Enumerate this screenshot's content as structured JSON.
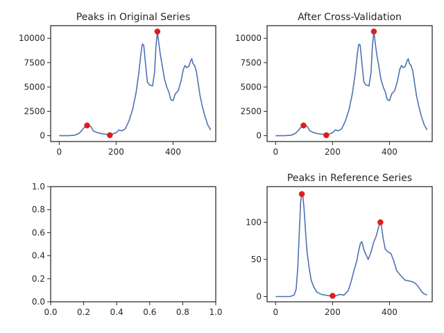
{
  "chart_data": [
    {
      "type": "line",
      "title": "Peaks in Original Series",
      "xlabel": "",
      "ylabel": "",
      "xlim": [
        -30,
        550
      ],
      "ylim": [
        -600,
        11300
      ],
      "xticks": [
        0,
        200,
        400
      ],
      "xtick_labels": [
        "0",
        "200",
        "400"
      ],
      "yticks": [
        0,
        2500,
        5000,
        7500,
        10000
      ],
      "ytick_labels": [
        "0",
        "2500",
        "5000",
        "7500",
        "10000"
      ],
      "grid": false,
      "series": [
        {
          "x": [
            0,
            30,
            55,
            70,
            80,
            90,
            98,
            105,
            112,
            120,
            135,
            150,
            165,
            178,
            190,
            200,
            210,
            220,
            232,
            245,
            258,
            270,
            280,
            287,
            292,
            297,
            303,
            310,
            318,
            328,
            335,
            340,
            345,
            350,
            356,
            362,
            370,
            378,
            385,
            392,
            400,
            408,
            418,
            428,
            436,
            442,
            448,
            455,
            462,
            466,
            470,
            476,
            482,
            488,
            495,
            503,
            512,
            522,
            532
          ],
          "y": [
            0,
            0,
            50,
            250,
            550,
            900,
            1050,
            1050,
            900,
            500,
            300,
            200,
            150,
            50,
            200,
            300,
            600,
            500,
            700,
            1500,
            2700,
            4400,
            6500,
            8400,
            9400,
            9300,
            7500,
            5500,
            5200,
            5100,
            6500,
            9200,
            10700,
            9500,
            8200,
            7200,
            5800,
            5000,
            4500,
            3700,
            3600,
            4300,
            4600,
            5600,
            6800,
            7200,
            7000,
            7100,
            7700,
            7900,
            7400,
            7200,
            6600,
            5400,
            4100,
            3000,
            2000,
            1100,
            600
          ]
        }
      ],
      "peaks": {
        "x": [
          98,
          178,
          345
        ],
        "y": [
          1050,
          50,
          10700
        ]
      }
    },
    {
      "type": "line",
      "title": "After Cross-Validation",
      "xlabel": "",
      "ylabel": "",
      "xlim": [
        -30,
        550
      ],
      "ylim": [
        -600,
        11300
      ],
      "xticks": [
        0,
        200,
        400
      ],
      "xtick_labels": [
        "0",
        "200",
        "400"
      ],
      "yticks": [
        0,
        2500,
        5000,
        7500,
        10000
      ],
      "ytick_labels": [
        "0",
        "2500",
        "5000",
        "7500",
        "10000"
      ],
      "grid": false,
      "series": [
        {
          "x": [
            0,
            30,
            55,
            70,
            80,
            90,
            98,
            105,
            112,
            120,
            135,
            150,
            165,
            178,
            190,
            200,
            210,
            220,
            232,
            245,
            258,
            270,
            280,
            287,
            292,
            297,
            303,
            310,
            318,
            328,
            335,
            340,
            345,
            350,
            356,
            362,
            370,
            378,
            385,
            392,
            400,
            408,
            418,
            428,
            436,
            442,
            448,
            455,
            462,
            466,
            470,
            476,
            482,
            488,
            495,
            503,
            512,
            522,
            532
          ],
          "y": [
            0,
            0,
            50,
            250,
            550,
            900,
            1050,
            1050,
            900,
            500,
            300,
            200,
            150,
            50,
            200,
            300,
            600,
            500,
            700,
            1500,
            2700,
            4400,
            6500,
            8400,
            9400,
            9300,
            7500,
            5500,
            5200,
            5100,
            6500,
            9200,
            10700,
            9500,
            8200,
            7200,
            5800,
            5000,
            4500,
            3700,
            3600,
            4300,
            4600,
            5600,
            6800,
            7200,
            7000,
            7100,
            7700,
            7900,
            7400,
            7200,
            6600,
            5400,
            4100,
            3000,
            2000,
            1100,
            600
          ]
        }
      ],
      "peaks": {
        "x": [
          98,
          178,
          345
        ],
        "y": [
          1050,
          50,
          10700
        ]
      }
    },
    {
      "type": "line",
      "title": "",
      "xlabel": "",
      "ylabel": "",
      "xlim": [
        0,
        1
      ],
      "ylim": [
        0,
        1
      ],
      "xticks": [
        0,
        0.2,
        0.4,
        0.6,
        0.8,
        1.0
      ],
      "xtick_labels": [
        "0.0",
        "0.2",
        "0.4",
        "0.6",
        "0.8",
        "1.0"
      ],
      "yticks": [
        0,
        0.2,
        0.4,
        0.6,
        0.8,
        1.0
      ],
      "ytick_labels": [
        "0.0",
        "0.2",
        "0.4",
        "0.6",
        "0.8",
        "1.0"
      ],
      "grid": false,
      "series": [],
      "peaks": null
    },
    {
      "type": "line",
      "title": "Peaks in Reference Series",
      "xlabel": "",
      "ylabel": "",
      "xlim": [
        -30,
        550
      ],
      "ylim": [
        -7,
        148
      ],
      "xticks": [
        0,
        200,
        400
      ],
      "xtick_labels": [
        "0",
        "200",
        "400"
      ],
      "yticks": [
        0,
        50,
        100
      ],
      "ytick_labels": [
        "0",
        "50",
        "100"
      ],
      "grid": false,
      "series": [
        {
          "x": [
            0,
            50,
            65,
            72,
            78,
            84,
            88,
            92,
            96,
            100,
            105,
            110,
            118,
            125,
            135,
            145,
            160,
            175,
            190,
            200,
            212,
            225,
            240,
            255,
            265,
            275,
            285,
            292,
            298,
            303,
            310,
            318,
            325,
            335,
            345,
            352,
            358,
            363,
            368,
            372,
            378,
            385,
            395,
            405,
            415,
            425,
            440,
            455,
            470,
            480,
            490,
            500,
            510,
            520,
            532
          ],
          "y": [
            0,
            0,
            2,
            10,
            40,
            95,
            128,
            138,
            134,
            118,
            88,
            62,
            38,
            22,
            12,
            6,
            3,
            2,
            1,
            1,
            1,
            3,
            2,
            8,
            20,
            35,
            48,
            62,
            72,
            74,
            63,
            56,
            50,
            60,
            74,
            80,
            88,
            96,
            100,
            94,
            78,
            64,
            60,
            58,
            48,
            35,
            28,
            22,
            21,
            20,
            18,
            14,
            8,
            4,
            2
          ]
        }
      ],
      "peaks": {
        "x": [
          92,
          200,
          368
        ],
        "y": [
          138,
          1,
          100
        ]
      }
    }
  ]
}
